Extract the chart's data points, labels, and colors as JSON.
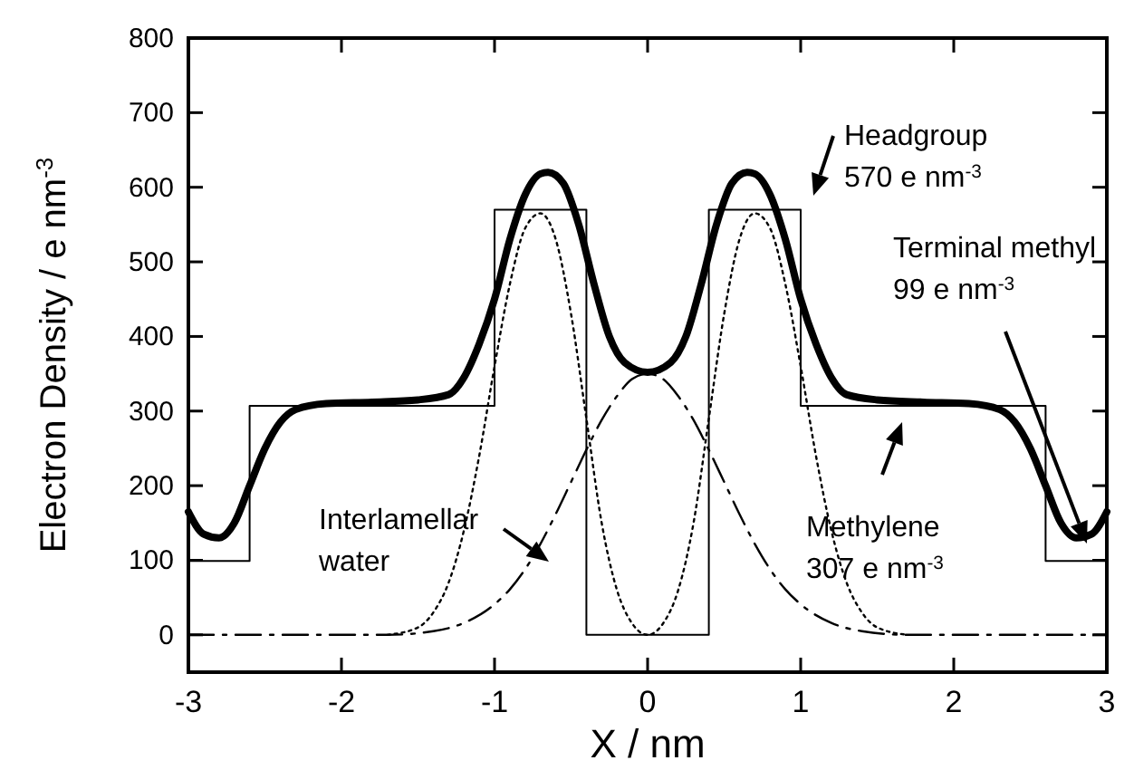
{
  "chart_data": {
    "type": "line",
    "xlabel": "X / nm",
    "ylabel": "Electron Density / e nm$^{-3}$",
    "xlim": [
      -3,
      3
    ],
    "ylim": [
      -50,
      800
    ],
    "xticks": [
      -3,
      -2,
      -1,
      0,
      1,
      2,
      3
    ],
    "yticks": [
      0,
      100,
      200,
      300,
      400,
      500,
      600,
      700,
      800
    ],
    "grid": false,
    "marker": "none",
    "series": [
      {
        "type": "line",
        "line_style": "solid",
        "color": "#000000",
        "x": [
          -3,
          -2.9,
          -2.8,
          -2.7,
          -2.6,
          -2.5,
          -2.4,
          -2.3,
          -2.1,
          -1.8,
          -1.5,
          -1.3,
          -1.2,
          -1.1,
          -1.0,
          -0.9,
          -0.8,
          -0.7,
          -0.65,
          -0.55,
          -0.45,
          -0.35,
          -0.25,
          -0.15,
          0,
          0.15,
          0.25,
          0.35,
          0.45,
          0.55,
          0.65,
          0.7,
          0.8,
          0.9,
          1.0,
          1.1,
          1.2,
          1.3,
          1.5,
          1.8,
          2.1,
          2.3,
          2.4,
          2.5,
          2.6,
          2.7,
          2.8,
          2.9,
          3
        ],
        "values": [
          165,
          135,
          130,
          150,
          200,
          250,
          285,
          302,
          310,
          312,
          315,
          322,
          345,
          390,
          450,
          530,
          590,
          618,
          620,
          605,
          550,
          470,
          400,
          365,
          352,
          365,
          400,
          470,
          550,
          605,
          620,
          618,
          590,
          530,
          450,
          390,
          345,
          322,
          315,
          312,
          310,
          302,
          285,
          250,
          200,
          150,
          130,
          135,
          165
        ]
      },
      {
        "type": "step",
        "line_style": "solid",
        "color": "#000000",
        "x": [
          -3,
          -2.6,
          -1,
          -0.4,
          0.4,
          1,
          2.6,
          3
        ],
        "values": [
          99,
          307,
          570,
          0,
          570,
          307,
          99,
          99
        ]
      },
      {
        "type": "line",
        "line_style": "dotted",
        "color": "#000000",
        "x": [
          -1.7,
          -1.5,
          -1.4,
          -1.3,
          -1.2,
          -1.1,
          -1.0,
          -0.9,
          -0.8,
          -0.7,
          -0.6,
          -0.5,
          -0.4,
          -0.3,
          -0.2,
          -0.1,
          0,
          0.1,
          0.2,
          0.3,
          0.4,
          0.5,
          0.6,
          0.7,
          0.8,
          0.9,
          1.0,
          1.1,
          1.2,
          1.3,
          1.4,
          1.5,
          1.7
        ],
        "values": [
          0,
          10,
          30,
          70,
          140,
          240,
          360,
          470,
          545,
          565,
          530,
          430,
          290,
          150,
          60,
          15,
          0,
          15,
          60,
          150,
          290,
          430,
          530,
          565,
          545,
          470,
          360,
          240,
          140,
          70,
          30,
          10,
          0
        ]
      },
      {
        "type": "line",
        "line_style": "dashdot",
        "color": "#000000",
        "x": [
          -3,
          -1.7,
          -1.4,
          -1.2,
          -1.0,
          -0.9,
          -0.8,
          -0.7,
          -0.6,
          -0.5,
          -0.4,
          -0.3,
          -0.2,
          -0.1,
          0,
          0.1,
          0.2,
          0.3,
          0.4,
          0.5,
          0.6,
          0.7,
          0.8,
          0.9,
          1.0,
          1.2,
          1.4,
          1.7,
          3
        ],
        "values": [
          0,
          0,
          5,
          16,
          41,
          61,
          88,
          122,
          162,
          205,
          248,
          288,
          320,
          343,
          350,
          343,
          320,
          288,
          248,
          205,
          162,
          122,
          88,
          61,
          41,
          16,
          5,
          0,
          0
        ]
      }
    ],
    "annotations": [
      "Headgroup\n570 e nm$^{-3}$",
      "Terminal methyl\n99 e nm$^{-3}$",
      "Methylene\n307 e nm$^{-3}$",
      "Interlamellar\nwater"
    ]
  }
}
